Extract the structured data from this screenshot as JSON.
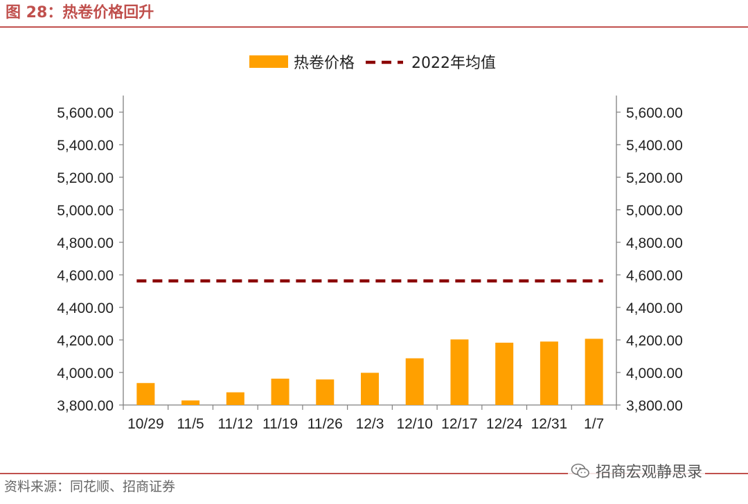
{
  "figure": {
    "label": "图 28：",
    "title": "热卷价格回升"
  },
  "source": "资料来源：同花顺、招商证券",
  "watermark": "招商宏观静思录",
  "colors": {
    "accent": "#c0504d",
    "bar": "#ffa000",
    "avg_line": "#8b0000"
  },
  "chart_data": {
    "type": "bar",
    "categories": [
      "10/29",
      "11/5",
      "11/12",
      "11/19",
      "11/26",
      "12/3",
      "12/10",
      "12/17",
      "12/24",
      "12/31",
      "1/7"
    ],
    "series": [
      {
        "name": "热卷价格",
        "type": "bar",
        "values": [
          3935,
          3828,
          3878,
          3962,
          3957,
          3998,
          4087,
          4203,
          4183,
          4190,
          4207
        ]
      },
      {
        "name": "2022年均值",
        "type": "line-dashed",
        "values": [
          4563,
          4563,
          4563,
          4563,
          4563,
          4563,
          4563,
          4563,
          4563,
          4563,
          4563
        ]
      }
    ],
    "ylim": [
      3800,
      5600
    ],
    "yticks": [
      "3,800.00",
      "4,000.00",
      "4,200.00",
      "4,400.00",
      "4,600.00",
      "4,800.00",
      "5,000.00",
      "5,200.00",
      "5,400.00",
      "5,600.00"
    ],
    "secondary_axis": true,
    "legend_position": "top-center",
    "grid": false
  }
}
